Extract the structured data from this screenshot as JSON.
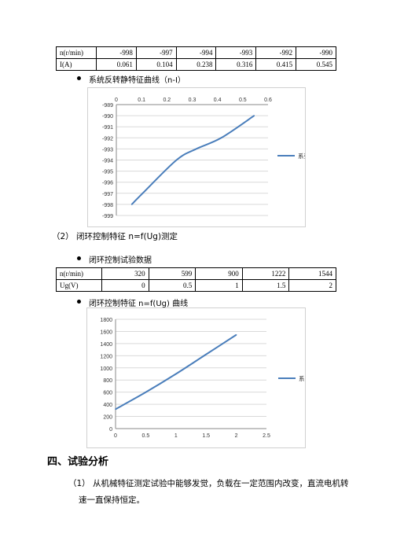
{
  "table1": {
    "row1": [
      "n(r/min)",
      "-998",
      "-997",
      "-994",
      "-993",
      "-992",
      "-990"
    ],
    "row2": [
      "I(A)",
      "0.061",
      "0.104",
      "0.238",
      "0.316",
      "0.415",
      "0.545"
    ]
  },
  "bullet1_text": "系统反转静特征曲线（n-I）",
  "section2_text": "（2）  闭环控制特征 n=f(Ug)测定",
  "bullet2_text": "闭环控制试验数据",
  "table2": {
    "row1": [
      "n(r/min)",
      "320",
      "599",
      "900",
      "1222",
      "1544"
    ],
    "row2": [
      "Ug(V)",
      "0",
      "0.5",
      "1",
      "1.5",
      "2"
    ]
  },
  "bullet3_text": "闭环控制特征 n=f(Ug) 曲线",
  "section4_heading": "四、试验分析",
  "para1_line1": "（1）   从机械特征测定试验中能够发觉，负载在一定范围内改变，直流电机转",
  "para1_line2": "速一直保持恒定。",
  "colors": {
    "series": "#4a7ebb",
    "grid": "#d9d9d9",
    "axis": "#888888"
  },
  "chart_data": [
    {
      "type": "line",
      "title": "",
      "xlabel": "",
      "ylabel": "",
      "x": [
        0.061,
        0.104,
        0.238,
        0.316,
        0.415,
        0.545
      ],
      "series": [
        {
          "name": "系列1",
          "values": [
            -998,
            -997,
            -994,
            -993,
            -992,
            -990
          ]
        }
      ],
      "xlim": [
        0,
        0.6
      ],
      "ylim": [
        -999,
        -989
      ],
      "xticks": [
        "0",
        "0.1",
        "0.2",
        "0.3",
        "0.4",
        "0.5",
        "0.6"
      ],
      "yticks": [
        "-989",
        "-990",
        "-991",
        "-992",
        "-993",
        "-994",
        "-995",
        "-996",
        "-997",
        "-998",
        "-999"
      ],
      "x_axis_position": "top",
      "grid": true,
      "legend": "right"
    },
    {
      "type": "line",
      "title": "",
      "xlabel": "",
      "ylabel": "",
      "x": [
        0,
        0.5,
        1,
        1.5,
        2
      ],
      "series": [
        {
          "name": "系列1",
          "values": [
            320,
            599,
            900,
            1222,
            1544
          ]
        }
      ],
      "xlim": [
        0,
        2.5
      ],
      "ylim": [
        0,
        1800
      ],
      "xticks": [
        "0",
        "0.5",
        "1",
        "1.5",
        "2",
        "2.5"
      ],
      "yticks": [
        "0",
        "200",
        "400",
        "600",
        "800",
        "1000",
        "1200",
        "1400",
        "1600",
        "1800"
      ],
      "x_axis_position": "bottom",
      "grid": true,
      "legend": "right"
    }
  ]
}
